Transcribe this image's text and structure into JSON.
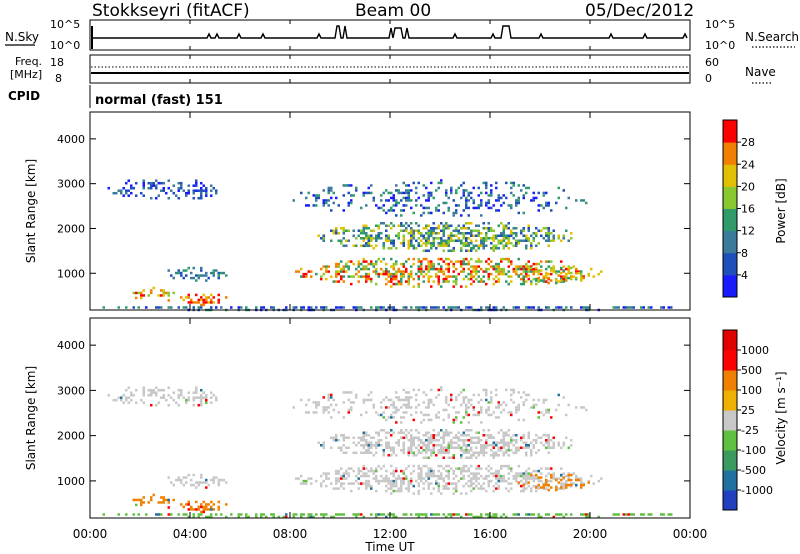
{
  "header": {
    "station": "Stokkseyri (fitACF)",
    "beam": "Beam 00",
    "date": "05/Dec/2012"
  },
  "top_panels": {
    "nsky_label": "N.Sky",
    "nsearch_label": "N.Search",
    "nsky_ticks": [
      "10^5",
      "10^0"
    ],
    "nsearch_ticks": [
      "10^5",
      "10^0"
    ],
    "freq_label_1": "Freq.",
    "freq_label_2": "[MHz]",
    "freq_ticks": [
      "18",
      "8"
    ],
    "nave_label": "Nave",
    "nave_ticks": [
      "60",
      "0"
    ],
    "cpid_label": "CPID",
    "cpid_value": "normal (fast) 151"
  },
  "chart_data": [
    {
      "type": "heatmap",
      "quantity": "Power",
      "xlabel": "",
      "ylabel": "Slant Range [km]",
      "xlim_hours": [
        0,
        24
      ],
      "ylim_km": [
        180,
        4600
      ],
      "y_ticks": [
        "4000",
        "3000",
        "2000",
        "1000"
      ],
      "colorbar_label": "Power [dB]",
      "colorbar_ticks": [
        "28",
        "24",
        "20",
        "16",
        "12",
        "8",
        "4"
      ],
      "colorbar_colors": [
        "#1a1aff",
        "#1f4fb8",
        "#3a7a9a",
        "#2f9a6a",
        "#8ac830",
        "#e0c000",
        "#f08000",
        "#ff0000"
      ]
    },
    {
      "type": "heatmap",
      "quantity": "Velocity",
      "xlabel": "Time UT",
      "ylabel": "Slant Range [km]",
      "xlim_hours": [
        0,
        24
      ],
      "ylim_km": [
        180,
        4600
      ],
      "y_ticks": [
        "4000",
        "3000",
        "2000",
        "1000"
      ],
      "x_ticks": [
        "00:00",
        "04:00",
        "08:00",
        "12:00",
        "16:00",
        "20:00",
        "00:00"
      ],
      "colorbar_label": "Velocity [m s⁻¹]",
      "colorbar_ticks": [
        "1000",
        "500",
        "100",
        "25",
        "-25",
        "-100",
        "-500",
        "-1000"
      ],
      "colorbar_colors": [
        "#2040c0",
        "#2070a0",
        "#3a9a60",
        "#60c040",
        "#c8c8c8",
        "#f0b000",
        "#f08000",
        "#ff0000",
        "#e00000"
      ]
    }
  ]
}
